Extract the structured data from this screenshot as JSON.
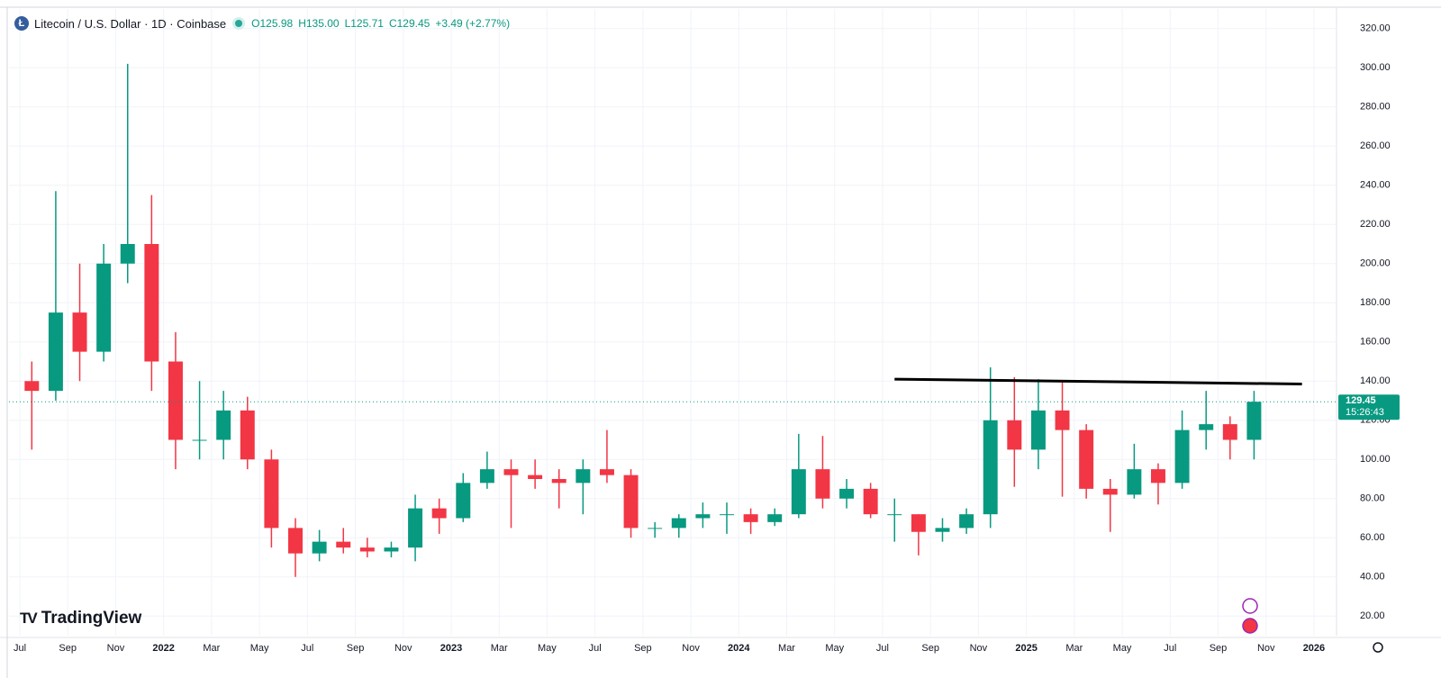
{
  "chart_data": {
    "type": "candlestick",
    "title": "Litecoin / U.S. Dollar · 1D · Coinbase",
    "ohlc_legend": [
      "O125.98",
      "H135.00",
      "L125.71",
      "C129.45",
      "+3.49 (+2.77%)"
    ],
    "watermark": "TradingView",
    "up_color": "#089981",
    "down_color": "#f23645",
    "x": [
      "2021-07",
      "2021-08",
      "2021-09",
      "2021-10",
      "2021-11",
      "2021-12",
      "2022-01",
      "2022-02",
      "2022-03",
      "2022-04",
      "2022-05",
      "2022-06",
      "2022-07",
      "2022-08",
      "2022-09",
      "2022-10",
      "2022-11",
      "2022-12",
      "2023-01",
      "2023-02",
      "2023-03",
      "2023-04",
      "2023-05",
      "2023-06",
      "2023-07",
      "2023-08",
      "2023-09",
      "2023-10",
      "2023-11",
      "2023-12",
      "2024-01",
      "2024-02",
      "2024-03",
      "2024-04",
      "2024-05",
      "2024-06",
      "2024-07",
      "2024-08",
      "2024-09",
      "2024-10",
      "2024-11",
      "2024-12",
      "2025-01",
      "2025-02",
      "2025-03",
      "2025-04",
      "2025-05",
      "2025-06",
      "2025-07",
      "2025-08",
      "2025-09",
      "2025-10"
    ],
    "open": [
      140,
      135,
      175,
      155,
      200,
      210,
      150,
      110,
      110,
      125,
      100,
      65,
      52,
      58,
      55,
      53,
      55,
      75,
      70,
      88,
      95,
      92,
      90,
      88,
      95,
      92,
      65,
      65,
      70,
      72,
      72,
      68,
      72,
      95,
      80,
      85,
      72,
      72,
      63,
      65,
      72,
      120,
      105,
      125,
      115,
      85,
      82,
      95,
      88,
      115,
      118,
      110
    ],
    "high": [
      150,
      237,
      200,
      210,
      302,
      235,
      165,
      140,
      135,
      132,
      105,
      70,
      64,
      65,
      60,
      58,
      82,
      80,
      93,
      104,
      100,
      100,
      95,
      100,
      115,
      95,
      68,
      72,
      78,
      78,
      75,
      75,
      113,
      112,
      90,
      88,
      80,
      72,
      70,
      75,
      147,
      142,
      141,
      140,
      118,
      90,
      108,
      98,
      125,
      135,
      122,
      135
    ],
    "low": [
      105,
      130,
      140,
      150,
      190,
      135,
      95,
      100,
      100,
      95,
      55,
      40,
      48,
      52,
      50,
      50,
      48,
      62,
      68,
      85,
      65,
      85,
      75,
      72,
      88,
      60,
      60,
      60,
      65,
      62,
      62,
      66,
      70,
      75,
      75,
      70,
      58,
      51,
      58,
      62,
      65,
      86,
      95,
      81,
      80,
      63,
      80,
      77,
      85,
      105,
      100,
      100
    ],
    "close": [
      135,
      175,
      155,
      200,
      210,
      150,
      110,
      110,
      125,
      100,
      65,
      52,
      58,
      55,
      53,
      55,
      75,
      70,
      88,
      95,
      92,
      90,
      88,
      95,
      92,
      65,
      65,
      70,
      72,
      72,
      68,
      72,
      95,
      80,
      85,
      72,
      72,
      63,
      65,
      72,
      120,
      105,
      125,
      115,
      85,
      82,
      95,
      88,
      115,
      118,
      110,
      129.45
    ],
    "ylim": [
      10,
      330
    ],
    "yticks": [
      {
        "value": 20,
        "label": "20.00"
      },
      {
        "value": 40,
        "label": "40.00"
      },
      {
        "value": 60,
        "label": "60.00"
      },
      {
        "value": 80,
        "label": "80.00"
      },
      {
        "value": 100,
        "label": "100.00"
      },
      {
        "value": 120,
        "label": "120.00"
      },
      {
        "value": 140,
        "label": "140.00"
      },
      {
        "value": 160,
        "label": "160.00"
      },
      {
        "value": 180,
        "label": "180.00"
      },
      {
        "value": 200,
        "label": "200.00"
      },
      {
        "value": 220,
        "label": "220.00"
      },
      {
        "value": 240,
        "label": "240.00"
      },
      {
        "value": 260,
        "label": "260.00"
      },
      {
        "value": 280,
        "label": "280.00"
      },
      {
        "value": 300,
        "label": "300.00"
      },
      {
        "value": 320,
        "label": "320.00"
      }
    ],
    "xticks": [
      {
        "value": "2021-07",
        "label": "Jul"
      },
      {
        "value": "2021-09",
        "label": "Sep"
      },
      {
        "value": "2021-11",
        "label": "Nov"
      },
      {
        "value": "2022-01",
        "label": "2022"
      },
      {
        "value": "2022-03",
        "label": "Mar"
      },
      {
        "value": "2022-05",
        "label": "May"
      },
      {
        "value": "2022-07",
        "label": "Jul"
      },
      {
        "value": "2022-09",
        "label": "Sep"
      },
      {
        "value": "2022-11",
        "label": "Nov"
      },
      {
        "value": "2023-01",
        "label": "2023"
      },
      {
        "value": "2023-03",
        "label": "Mar"
      },
      {
        "value": "2023-05",
        "label": "May"
      },
      {
        "value": "2023-07",
        "label": "Jul"
      },
      {
        "value": "2023-09",
        "label": "Sep"
      },
      {
        "value": "2023-11",
        "label": "Nov"
      },
      {
        "value": "2024-01",
        "label": "2024"
      },
      {
        "value": "2024-03",
        "label": "Mar"
      },
      {
        "value": "2024-05",
        "label": "May"
      },
      {
        "value": "2024-07",
        "label": "Jul"
      },
      {
        "value": "2024-09",
        "label": "Sep"
      },
      {
        "value": "2024-11",
        "label": "Nov"
      },
      {
        "value": "2025-01",
        "label": "2025"
      },
      {
        "value": "2025-03",
        "label": "Mar"
      },
      {
        "value": "2025-05",
        "label": "May"
      },
      {
        "value": "2025-07",
        "label": "Jul"
      },
      {
        "value": "2025-09",
        "label": "Sep"
      },
      {
        "value": "2025-11",
        "label": "Nov"
      },
      {
        "value": "2026-01",
        "label": "2026"
      }
    ],
    "grid": true,
    "trendline": {
      "x": [
        "2024-07",
        "2025-12"
      ],
      "values": [
        141,
        138.5
      ],
      "color": "#000000"
    },
    "last_price": {
      "value": 129.45,
      "countdown": "15:26:43",
      "color": "#089981"
    }
  }
}
